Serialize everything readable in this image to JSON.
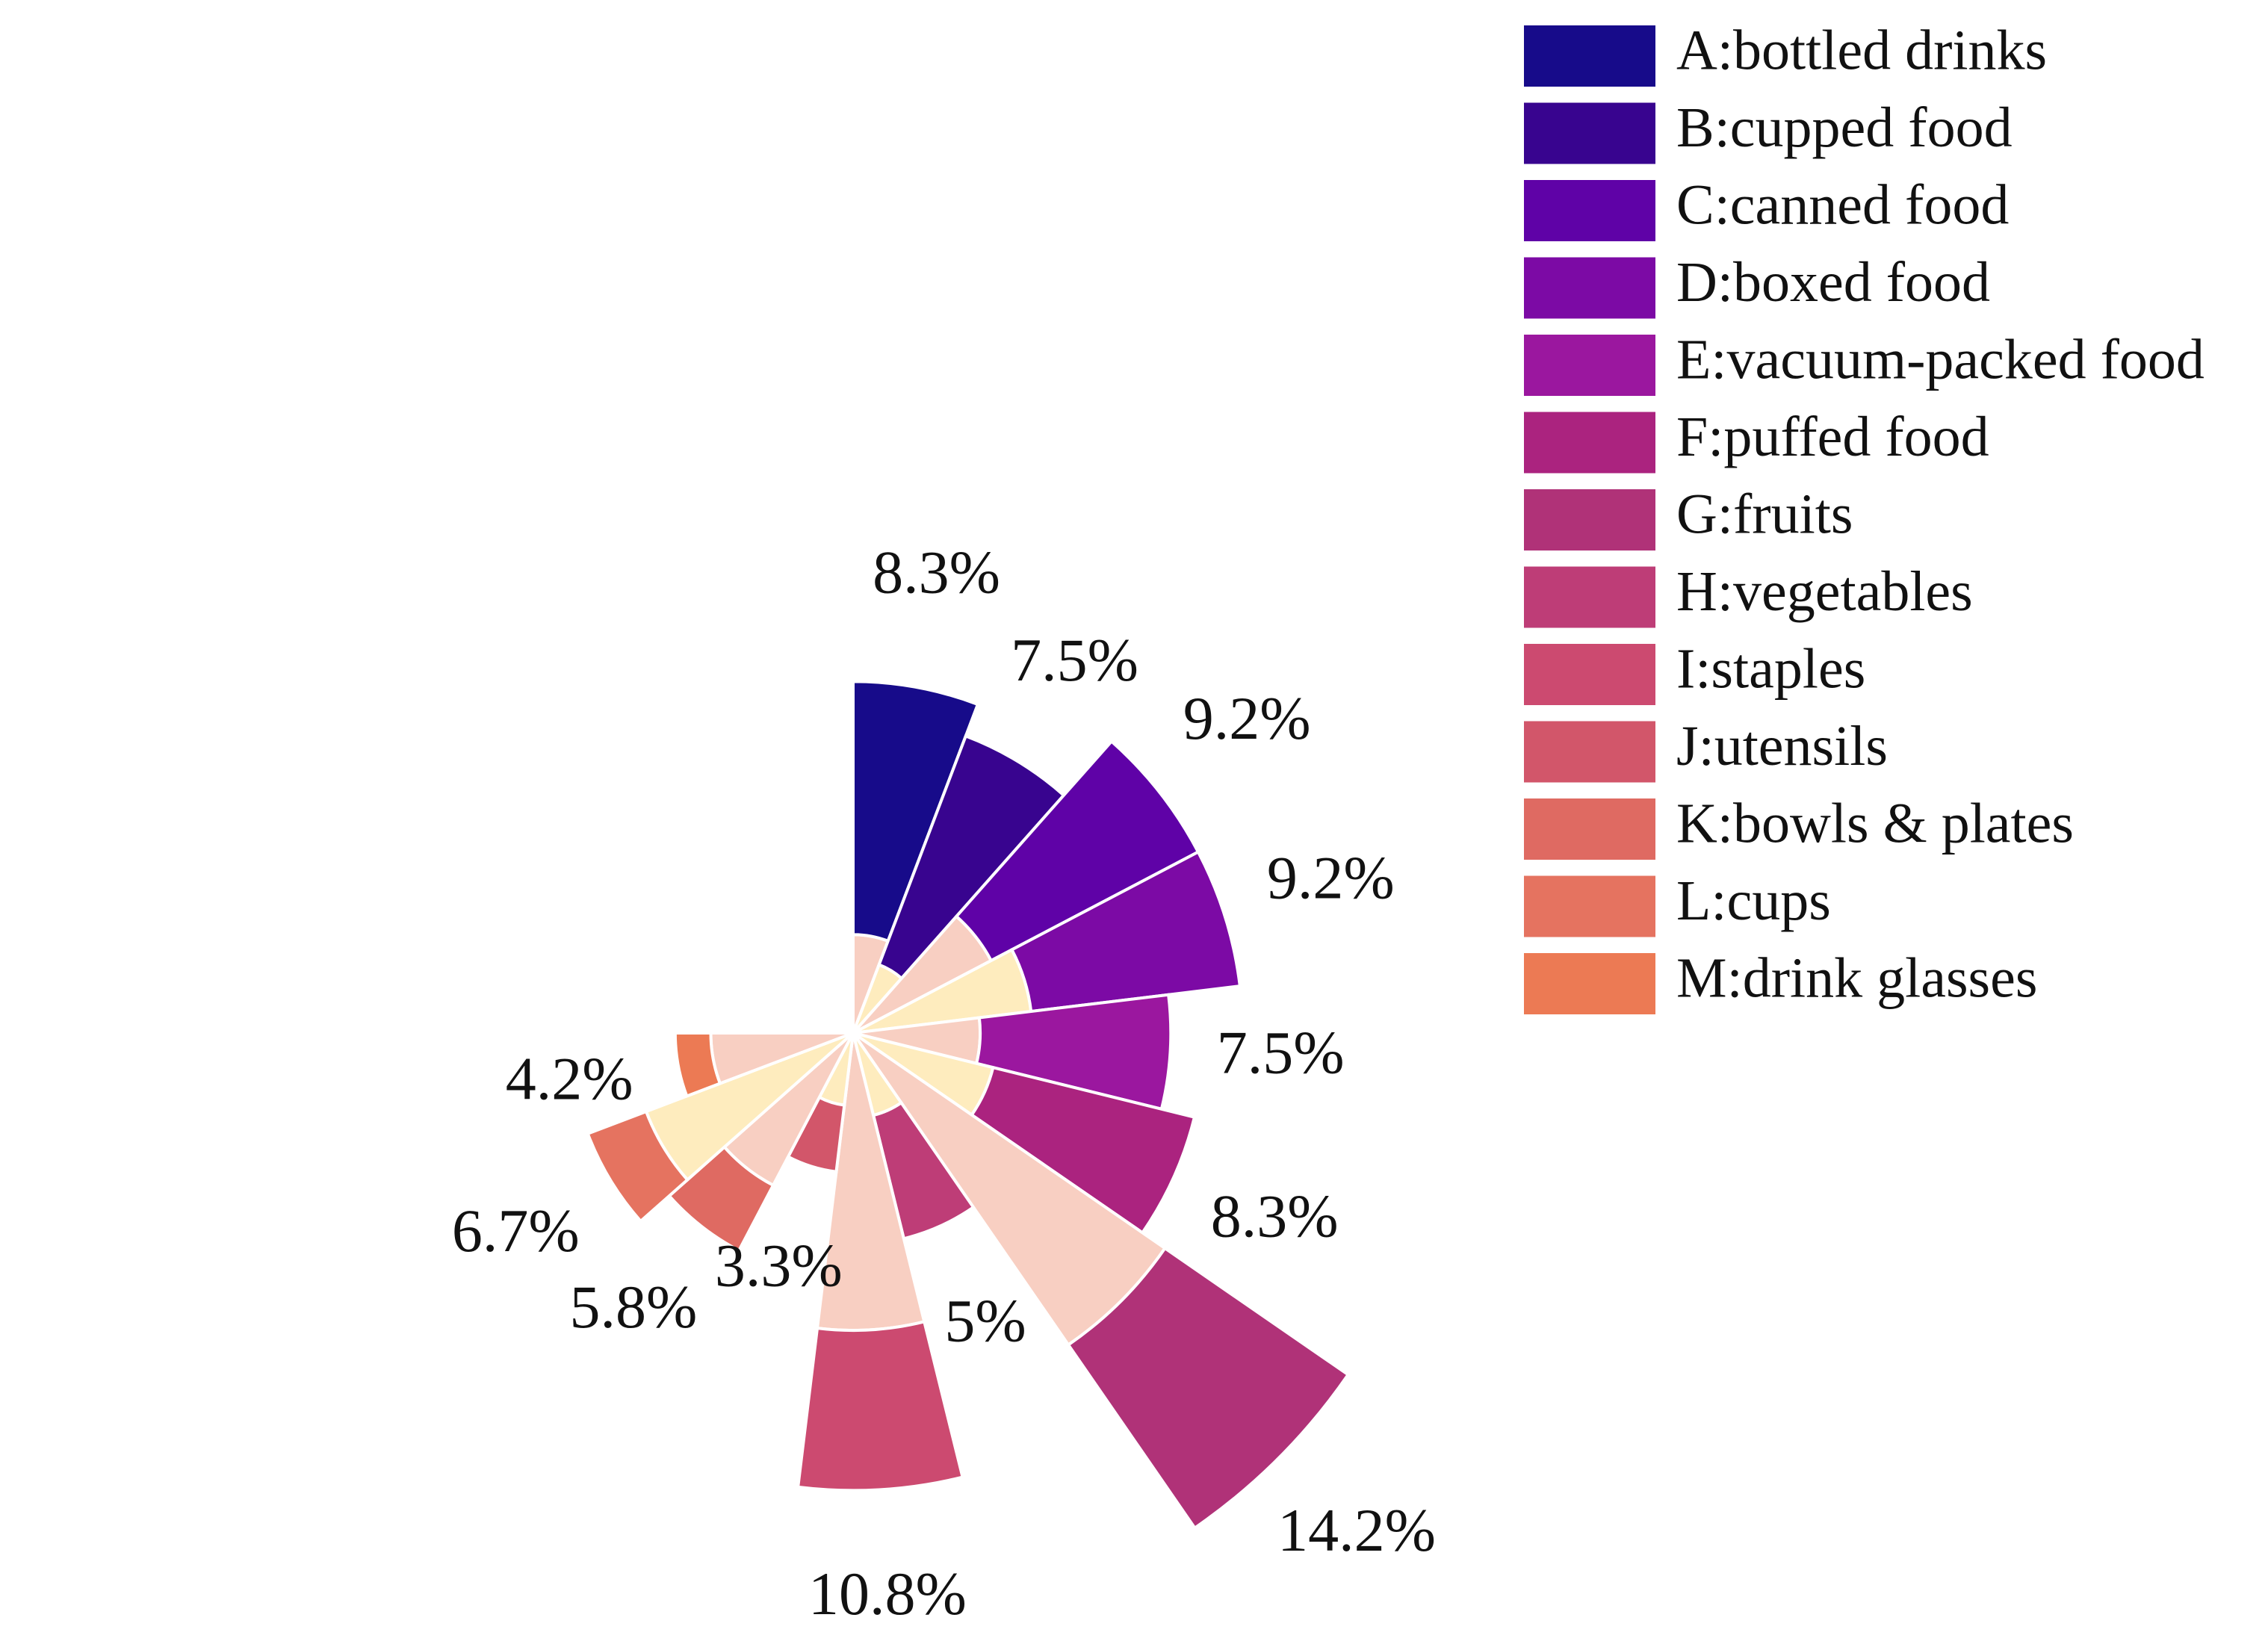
{
  "chart_data": {
    "type": "nightingale-rose",
    "series": [
      {
        "key": "A",
        "label": "A:bottled drinks",
        "value": 8.3,
        "display": "8.3%",
        "inner": 0.28,
        "color": "#170b8a"
      },
      {
        "key": "B",
        "label": "B:cupped food",
        "value": 7.5,
        "display": "7.5%",
        "inner": 0.23,
        "color": "#38048f"
      },
      {
        "key": "C",
        "label": "C:canned food",
        "value": 9.2,
        "display": "9.2%",
        "inner": 0.4,
        "color": "#5f02a7"
      },
      {
        "key": "D",
        "label": "D:boxed food",
        "value": 9.2,
        "display": "9.2%",
        "inner": 0.46,
        "color": "#7c0aa5"
      },
      {
        "key": "E",
        "label": "E:vacuum-packed food",
        "value": 7.5,
        "display": "7.5%",
        "inner": 0.4,
        "color": "#9b179f"
      },
      {
        "key": "F",
        "label": "F:puffed food",
        "value": 8.3,
        "display": "8.3%",
        "inner": 0.41,
        "color": "#ab237f"
      },
      {
        "key": "G",
        "label": "G:fruits",
        "value": 14.2,
        "display": "14.2%",
        "inner": 0.63,
        "color": "#b03278"
      },
      {
        "key": "H",
        "label": "H:vegetables",
        "value": 5.0,
        "display": "5%",
        "inner": 0.4,
        "color": "#be3d77"
      },
      {
        "key": "I",
        "label": "I:staples",
        "value": 10.8,
        "display": "10.8%",
        "inner": 0.65,
        "color": "#cc4a70"
      },
      {
        "key": "J",
        "label": "J:utensils",
        "value": 3.3,
        "display": "3.3%",
        "inner": 0.52,
        "color": "#d2566a"
      },
      {
        "key": "K",
        "label": "K:bowls & plates",
        "value": 5.8,
        "display": "5.8%",
        "inner": 0.7,
        "color": "#df6a62"
      },
      {
        "key": "L",
        "label": "L:cups",
        "value": 6.7,
        "display": "6.7%",
        "inner": 0.78,
        "color": "#e57360"
      },
      {
        "key": "M",
        "label": "M:drink glasses",
        "value": 4.2,
        "display": "4.2%",
        "inner": 0.8,
        "color": "#ec7a54"
      }
    ],
    "inner_colors": [
      "#f8cfc2",
      "#feecbe"
    ],
    "legend_position": "top-right",
    "grid": false
  }
}
